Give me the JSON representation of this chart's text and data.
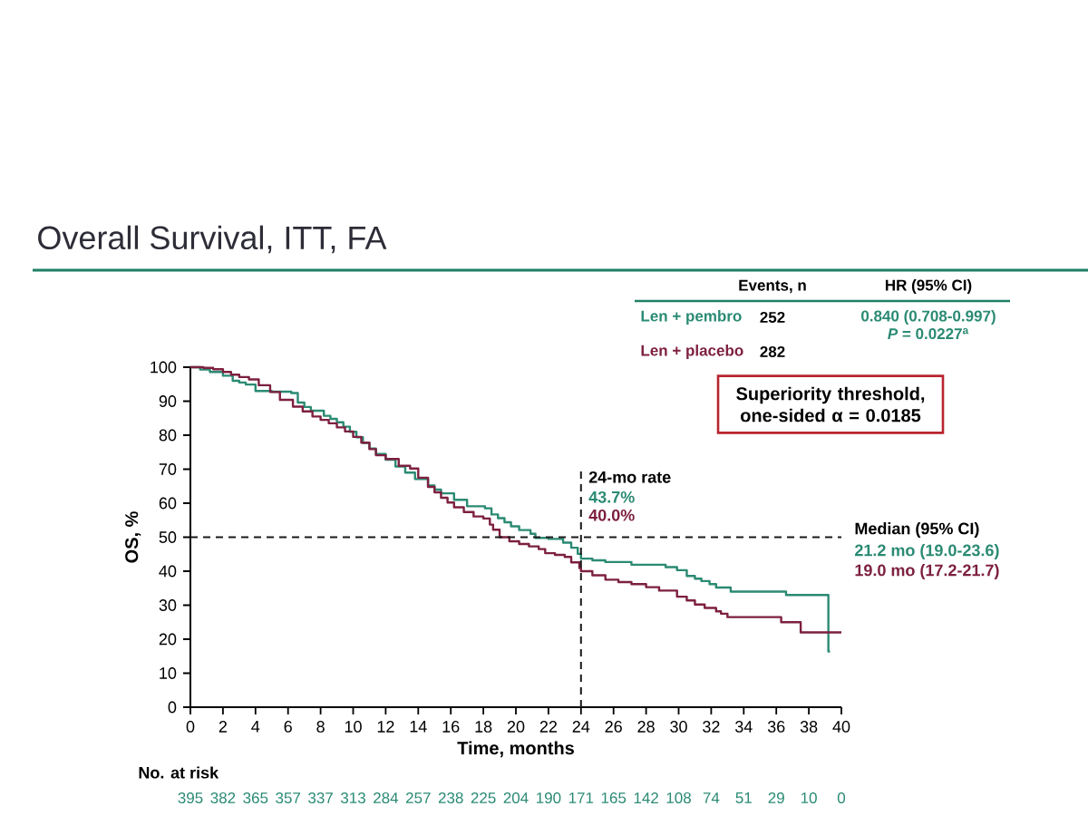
{
  "chart_data": {
    "type": "step",
    "title": "Overall Survival, ITT, FA",
    "xlabel": "Time, months",
    "ylabel": "OS, %",
    "xlim": [
      0,
      40
    ],
    "ylim": [
      0,
      100
    ],
    "xticks": [
      0,
      2,
      4,
      6,
      8,
      10,
      12,
      14,
      16,
      18,
      20,
      22,
      24,
      26,
      28,
      30,
      32,
      34,
      36,
      38,
      40
    ],
    "yticks": [
      0,
      10,
      20,
      30,
      40,
      50,
      60,
      70,
      80,
      90,
      100
    ],
    "legend": "top right",
    "series": [
      {
        "name": "Len + pembro",
        "color": "#2a8a73",
        "x": [
          0,
          0.6,
          1.2,
          2.0,
          2.6,
          3.0,
          3.4,
          4.0,
          5.0,
          6.2,
          6.6,
          7.0,
          7.4,
          8.2,
          8.6,
          9.0,
          9.4,
          9.8,
          10.2,
          10.6,
          11.0,
          11.4,
          12.0,
          12.6,
          13.2,
          13.8,
          14.6,
          15.0,
          15.4,
          16.2,
          17.0,
          18.1,
          18.5,
          18.9,
          19.3,
          19.7,
          20.2,
          20.9,
          21.2,
          22.0,
          22.9,
          23.4,
          23.8,
          24.0,
          24.7,
          25.5,
          27.1,
          29.2,
          29.9,
          30.5,
          31.0,
          31.4,
          31.9,
          32.3,
          33.2,
          36.6,
          39.2,
          39.3
        ],
        "values": [
          100,
          99.3,
          98.6,
          97.5,
          96.0,
          95.5,
          94.9,
          93.0,
          92.8,
          92.4,
          89.6,
          88.3,
          87.2,
          85.7,
          84.8,
          83.8,
          82.5,
          81.0,
          79.4,
          77.7,
          76.1,
          74.5,
          72.8,
          70.8,
          69.0,
          67.1,
          65.2,
          64.0,
          62.9,
          61.0,
          59.1,
          58.5,
          56.7,
          55.6,
          54.4,
          53.2,
          52.1,
          51.0,
          49.8,
          49.5,
          48.4,
          46.9,
          45.1,
          43.7,
          43.2,
          42.7,
          41.9,
          41.2,
          40.3,
          38.6,
          37.8,
          37.1,
          36.2,
          35.2,
          34.0,
          33.0,
          16.4,
          16.4
        ]
      },
      {
        "name": "Len + placebo",
        "color": "#7d2040",
        "x": [
          0,
          0.8,
          1.4,
          2.0,
          2.5,
          3.0,
          3.6,
          4.2,
          4.9,
          5.5,
          6.3,
          6.9,
          7.5,
          8.0,
          8.5,
          9.0,
          9.5,
          10.0,
          10.5,
          11.0,
          11.4,
          12.0,
          12.8,
          13.5,
          14.0,
          14.6,
          15.0,
          15.4,
          15.8,
          16.2,
          16.8,
          17.4,
          18.0,
          18.4,
          18.6,
          19.0,
          19.6,
          20.2,
          20.8,
          21.4,
          21.8,
          22.4,
          23.0,
          23.4,
          23.9,
          24.0,
          24.7,
          25.5,
          26.3,
          27.1,
          28.0,
          28.8,
          29.9,
          30.5,
          31.0,
          31.6,
          32.3,
          32.6,
          33.0,
          36.3,
          37.5,
          40.0
        ],
        "values": [
          100,
          99.8,
          99.4,
          98.6,
          97.8,
          97.1,
          96.4,
          94.7,
          92.7,
          90.4,
          88.4,
          87.0,
          85.5,
          84.5,
          83.5,
          82.3,
          81.1,
          79.5,
          77.8,
          75.9,
          74.1,
          73.0,
          71.0,
          70.2,
          67.5,
          64.8,
          63.2,
          61.6,
          60.2,
          58.8,
          57.4,
          56.1,
          55.5,
          53.7,
          52.2,
          50.0,
          48.8,
          48.0,
          47.3,
          46.5,
          45.3,
          44.8,
          44.2,
          42.6,
          40.9,
          40.0,
          38.8,
          37.5,
          36.8,
          36.2,
          35.3,
          34.3,
          32.5,
          31.4,
          30.2,
          29.2,
          28.2,
          27.5,
          26.5,
          25.0,
          22.0,
          22.0
        ]
      }
    ],
    "ref_lines": [
      {
        "axis": "y",
        "value": 50,
        "label": "Median (95% CI)",
        "line_style": "dashed",
        "color": "#1a1a1a"
      },
      {
        "axis": "x",
        "value": 24,
        "label": "24-mo rate",
        "line_style": "dashed",
        "color": "#1a1a1a"
      }
    ],
    "annotations": [
      "Events, n",
      "HR (95% CI)",
      "252",
      "282",
      "0.840 (0.708-0.997)",
      "*P* = 0.0227$^{a}$",
      "Superiority threshold, one-sided α = 0.0185",
      "43.7%",
      "40.0%",
      "21.2 mo (19.0-23.6)",
      "19.0 mo (17.2-21.7)",
      "No. at risk",
      "395",
      "382",
      "365",
      "357",
      "337",
      "313",
      "284",
      "257",
      "238",
      "225",
      "204",
      "190",
      "171",
      "165",
      "142",
      "108",
      "74",
      "51",
      "29",
      "10",
      "0"
    ]
  }
}
